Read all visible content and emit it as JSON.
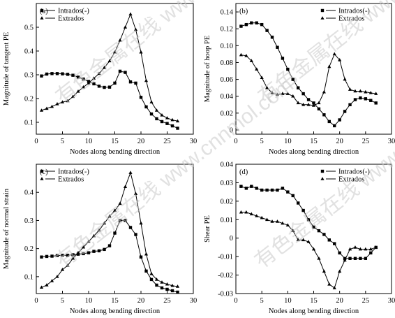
{
  "chart_data": [
    {
      "type": "line",
      "panel_label": "(a)",
      "xlabel": "Nodes along bending direction",
      "ylabel": "Magnitude of tangent PE",
      "xlim": [
        0,
        30
      ],
      "ylim": [
        0.05,
        0.6
      ],
      "xticks": [
        "0",
        "5",
        "10",
        "15",
        "20",
        "25",
        "30"
      ],
      "yticks": [
        "0.1",
        "0.2",
        "0.3",
        "0.4",
        "0.5"
      ],
      "legend_position": "top-center",
      "x": [
        1,
        2,
        3,
        4,
        5,
        6,
        7,
        8,
        9,
        10,
        11,
        12,
        13,
        14,
        15,
        16,
        17,
        18,
        19,
        20,
        21,
        22,
        23,
        24,
        25,
        26,
        27
      ],
      "series": [
        {
          "name": "Intrados(-)",
          "marker": "square",
          "values": [
            0.295,
            0.303,
            0.305,
            0.305,
            0.304,
            0.302,
            0.298,
            0.29,
            0.282,
            0.272,
            0.262,
            0.252,
            0.247,
            0.248,
            0.265,
            0.315,
            0.31,
            0.27,
            0.265,
            0.205,
            0.165,
            0.135,
            0.115,
            0.103,
            0.095,
            0.085,
            0.075
          ]
        },
        {
          "name": "Extrados",
          "marker": "triangle",
          "values": [
            0.15,
            0.158,
            0.166,
            0.177,
            0.185,
            0.19,
            0.208,
            0.23,
            0.248,
            0.265,
            0.285,
            0.305,
            0.33,
            0.358,
            0.395,
            0.445,
            0.5,
            0.555,
            0.49,
            0.395,
            0.275,
            0.185,
            0.15,
            0.13,
            0.118,
            0.11,
            0.105
          ]
        }
      ]
    },
    {
      "type": "line",
      "panel_label": "(b)",
      "xlabel": "Nodes along bending direction",
      "ylabel": "Magnitude of hoop PE",
      "xlim": [
        0,
        30
      ],
      "ylim": [
        -0.005,
        0.15
      ],
      "xticks": [
        "0",
        "5",
        "10",
        "15",
        "20",
        "25",
        "30"
      ],
      "yticks": [
        "0",
        "0.02",
        "0.04",
        "0.06",
        "0.08",
        "0.10",
        "0.12",
        "0.14"
      ],
      "legend_position": "top-right",
      "x": [
        1,
        2,
        3,
        4,
        5,
        6,
        7,
        8,
        9,
        10,
        11,
        12,
        13,
        14,
        15,
        16,
        17,
        18,
        19,
        20,
        21,
        22,
        23,
        24,
        25,
        26,
        27
      ],
      "series": [
        {
          "name": "Intrados(-)",
          "marker": "square",
          "values": [
            0.123,
            0.125,
            0.127,
            0.127,
            0.125,
            0.118,
            0.11,
            0.098,
            0.085,
            0.072,
            0.06,
            0.05,
            0.043,
            0.036,
            0.032,
            0.025,
            0.018,
            0.01,
            0.005,
            0.012,
            0.022,
            0.03,
            0.036,
            0.038,
            0.037,
            0.035,
            0.032
          ]
        },
        {
          "name": "Extrados",
          "marker": "triangle",
          "values": [
            0.089,
            0.088,
            0.082,
            0.072,
            0.062,
            0.05,
            0.044,
            0.042,
            0.043,
            0.043,
            0.04,
            0.032,
            0.03,
            0.03,
            0.029,
            0.032,
            0.045,
            0.075,
            0.09,
            0.083,
            0.06,
            0.048,
            0.046,
            0.046,
            0.045,
            0.044,
            0.043
          ]
        }
      ]
    },
    {
      "type": "line",
      "panel_label": "(c)",
      "xlabel": "Nodes along bending direction",
      "ylabel": "Magnitude of normal strain",
      "xlim": [
        0,
        30
      ],
      "ylim": [
        0.04,
        0.5
      ],
      "xticks": [
        "0",
        "5",
        "10",
        "15",
        "20",
        "25",
        "30"
      ],
      "yticks": [
        "0.1",
        "0.2",
        "0.3",
        "0.4"
      ],
      "legend_position": "top-center",
      "x": [
        1,
        2,
        3,
        4,
        5,
        6,
        7,
        8,
        9,
        10,
        11,
        12,
        13,
        14,
        15,
        16,
        17,
        18,
        19,
        20,
        21,
        22,
        23,
        24,
        25,
        26,
        27
      ],
      "series": [
        {
          "name": "Intrados(-)",
          "marker": "square",
          "values": [
            0.17,
            0.172,
            0.173,
            0.175,
            0.176,
            0.176,
            0.178,
            0.18,
            0.182,
            0.185,
            0.19,
            0.192,
            0.197,
            0.21,
            0.255,
            0.3,
            0.3,
            0.275,
            0.25,
            0.17,
            0.12,
            0.09,
            0.07,
            0.06,
            0.055,
            0.05,
            0.045
          ]
        },
        {
          "name": "Extrados",
          "marker": "triangle",
          "values": [
            0.062,
            0.07,
            0.085,
            0.1,
            0.125,
            0.14,
            0.165,
            0.185,
            0.205,
            0.225,
            0.245,
            0.265,
            0.29,
            0.315,
            0.335,
            0.36,
            0.42,
            0.47,
            0.395,
            0.29,
            0.18,
            0.11,
            0.09,
            0.08,
            0.073,
            0.068,
            0.065
          ]
        }
      ]
    },
    {
      "type": "line",
      "panel_label": "(d)",
      "xlabel": "Nodes along bending direction",
      "ylabel": "Shear PE",
      "xlim": [
        0,
        30
      ],
      "ylim": [
        -0.03,
        0.04
      ],
      "xticks": [
        "0",
        "5",
        "10",
        "15",
        "20",
        "25",
        "30"
      ],
      "yticks": [
        "-0.03",
        "-0.02",
        "-0.01",
        "0",
        "0.01",
        "0.02",
        "0.03",
        "0.04"
      ],
      "legend_position": "top-right",
      "x": [
        1,
        2,
        3,
        4,
        5,
        6,
        7,
        8,
        9,
        10,
        11,
        12,
        13,
        14,
        15,
        16,
        17,
        18,
        19,
        20,
        21,
        22,
        23,
        24,
        25,
        26,
        27
      ],
      "series": [
        {
          "name": "Intrados(-)",
          "marker": "square",
          "values": [
            0.028,
            0.027,
            0.028,
            0.027,
            0.026,
            0.026,
            0.026,
            0.026,
            0.027,
            0.025,
            0.023,
            0.019,
            0.015,
            0.01,
            0.006,
            0.004,
            0.002,
            -0.001,
            -0.003,
            -0.008,
            -0.011,
            -0.011,
            -0.011,
            -0.011,
            -0.011,
            -0.008,
            -0.005
          ]
        },
        {
          "name": "Extrados",
          "marker": "triangle",
          "values": [
            0.014,
            0.014,
            0.013,
            0.012,
            0.011,
            0.01,
            0.009,
            0.009,
            0.008,
            0.007,
            0.004,
            -0.001,
            -0.001,
            -0.002,
            -0.006,
            -0.011,
            -0.018,
            -0.025,
            -0.027,
            -0.018,
            -0.012,
            -0.006,
            -0.005,
            -0.006,
            -0.006,
            -0.006,
            -0.005
          ]
        }
      ]
    }
  ],
  "watermark": "有色金属在线 www.cnnmol.com"
}
